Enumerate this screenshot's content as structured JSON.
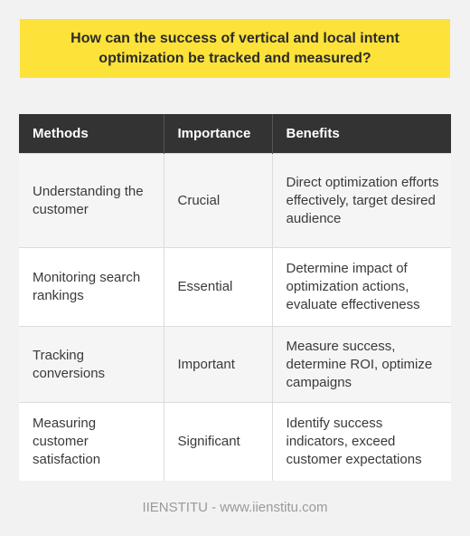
{
  "title": "How can the success of vertical and local intent optimization be tracked and measured?",
  "table": {
    "headers": [
      "Methods",
      "Importance",
      "Benefits"
    ],
    "rows": [
      {
        "method": "Understanding the customer",
        "importance": "Crucial",
        "benefits": "Direct optimization efforts effectively, target desired audience"
      },
      {
        "method": "Monitoring search rankings",
        "importance": "Essential",
        "benefits": "Determine impact of optimization actions, evaluate effectiveness"
      },
      {
        "method": "Tracking conversions",
        "importance": "Important",
        "benefits": "Measure success, determine ROI, optimize campaigns"
      },
      {
        "method": "Measuring customer satisfaction",
        "importance": "Significant",
        "benefits": "Identify success indicators, exceed customer expectations"
      }
    ]
  },
  "footer": "IIENSTITU - www.iienstitu.com"
}
